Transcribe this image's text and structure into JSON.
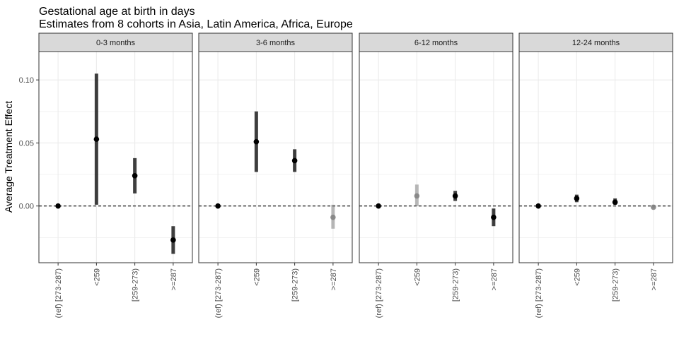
{
  "chart_data": {
    "type": "scatter",
    "title": "Gestational age at birth in days",
    "subtitle": "Estimates from 8 cohorts in Asia, Latin America, Africa, Europe",
    "xlabel": "",
    "ylabel": "Average Treatment Effect",
    "categories": [
      "(ref) [273-287)",
      "<259",
      "[259-273)",
      ">=287"
    ],
    "ylim": [
      -0.045,
      0.1225
    ],
    "yticks": [
      0.0,
      0.05,
      0.1
    ],
    "ytick_labels": [
      "0.00",
      "0.05",
      "0.10"
    ],
    "reference_line": 0,
    "grid": true,
    "legend": "none",
    "colors": {
      "significant": "#000000",
      "not_significant": "#808080",
      "ref_line": "#000000",
      "strip_fill": "#d9d9d9",
      "grid": "#ebebeb"
    },
    "panels": [
      {
        "label": "0-3 months",
        "points": [
          {
            "category": "(ref) [273-287)",
            "estimate": 0.0,
            "lower": 0.0,
            "upper": 0.0,
            "significant": true
          },
          {
            "category": "<259",
            "estimate": 0.053,
            "lower": 0.001,
            "upper": 0.105,
            "significant": true
          },
          {
            "category": "[259-273)",
            "estimate": 0.024,
            "lower": 0.01,
            "upper": 0.038,
            "significant": true
          },
          {
            "category": ">=287",
            "estimate": -0.027,
            "lower": -0.038,
            "upper": -0.016,
            "significant": true
          }
        ]
      },
      {
        "label": "3-6 months",
        "points": [
          {
            "category": "(ref) [273-287)",
            "estimate": 0.0,
            "lower": 0.0,
            "upper": 0.0,
            "significant": true
          },
          {
            "category": "<259",
            "estimate": 0.051,
            "lower": 0.027,
            "upper": 0.075,
            "significant": true
          },
          {
            "category": "[259-273)",
            "estimate": 0.036,
            "lower": 0.027,
            "upper": 0.045,
            "significant": true
          },
          {
            "category": ">=287",
            "estimate": -0.009,
            "lower": -0.018,
            "upper": 0.001,
            "significant": false
          }
        ]
      },
      {
        "label": "6-12 months",
        "points": [
          {
            "category": "(ref) [273-287)",
            "estimate": 0.0,
            "lower": 0.0,
            "upper": 0.0,
            "significant": true
          },
          {
            "category": "<259",
            "estimate": 0.008,
            "lower": 0.0,
            "upper": 0.017,
            "significant": false
          },
          {
            "category": "[259-273)",
            "estimate": 0.008,
            "lower": 0.004,
            "upper": 0.012,
            "significant": true
          },
          {
            "category": ">=287",
            "estimate": -0.009,
            "lower": -0.016,
            "upper": -0.002,
            "significant": true
          }
        ]
      },
      {
        "label": "12-24 months",
        "points": [
          {
            "category": "(ref) [273-287)",
            "estimate": 0.0,
            "lower": 0.0,
            "upper": 0.0,
            "significant": true
          },
          {
            "category": "<259",
            "estimate": 0.006,
            "lower": 0.003,
            "upper": 0.009,
            "significant": true
          },
          {
            "category": "[259-273)",
            "estimate": 0.003,
            "lower": 0.001,
            "upper": 0.006,
            "significant": true
          },
          {
            "category": ">=287",
            "estimate": -0.001,
            "lower": -0.002,
            "upper": 0.001,
            "significant": false
          }
        ]
      }
    ]
  }
}
